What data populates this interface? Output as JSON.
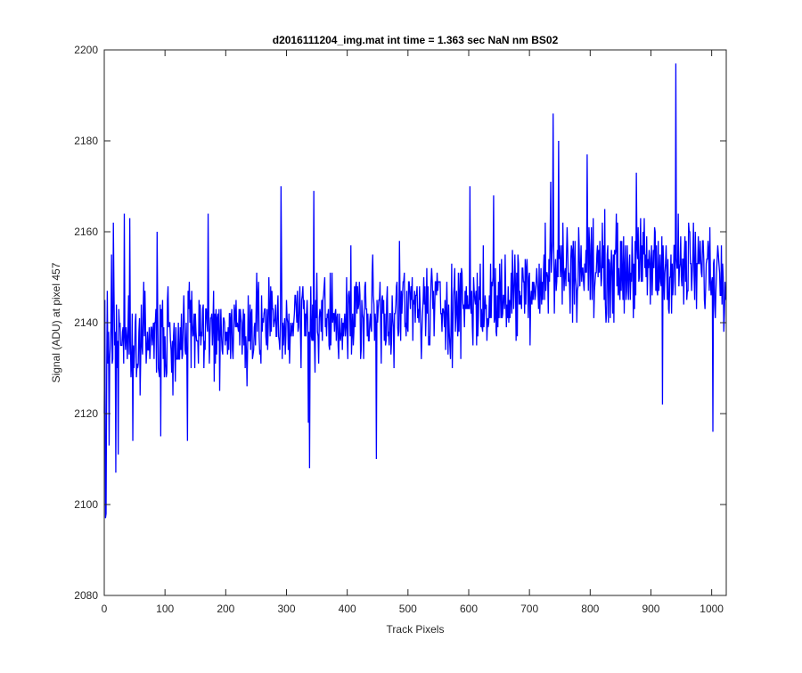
{
  "chart_data": {
    "type": "line",
    "title": "d2016111204_img.mat int time = 1.363 sec  NaN nm BS02",
    "xlabel": "Track Pixels",
    "ylabel": "Signal (ADU) at pixel 457",
    "xlim": [
      0,
      1024
    ],
    "ylim": [
      2080,
      2200
    ],
    "xticks": [
      0,
      100,
      200,
      300,
      400,
      500,
      600,
      700,
      800,
      900,
      1000
    ],
    "yticks": [
      2080,
      2100,
      2120,
      2140,
      2160,
      2180,
      2200
    ],
    "grid": false,
    "line_color": "#0000ff",
    "n_points": 1024,
    "trend": {
      "start": 2136,
      "end": 2150,
      "rise_after_x": 650,
      "late_level": 2152
    },
    "noise_half_range": 10,
    "features": [
      {
        "x": 0,
        "y": 2120
      },
      {
        "x": 1,
        "y": 2145
      },
      {
        "x": 2,
        "y": 2097
      },
      {
        "x": 3,
        "y": 2098
      },
      {
        "x": 4,
        "y": 2130
      },
      {
        "x": 5,
        "y": 2147
      },
      {
        "x": 8,
        "y": 2113
      },
      {
        "x": 12,
        "y": 2155
      },
      {
        "x": 15,
        "y": 2162
      },
      {
        "x": 19,
        "y": 2107
      },
      {
        "x": 23,
        "y": 2111
      },
      {
        "x": 33,
        "y": 2164
      },
      {
        "x": 42,
        "y": 2163
      },
      {
        "x": 47,
        "y": 2114
      },
      {
        "x": 67,
        "y": 2147
      },
      {
        "x": 87,
        "y": 2160
      },
      {
        "x": 93,
        "y": 2115
      },
      {
        "x": 137,
        "y": 2114
      },
      {
        "x": 171,
        "y": 2164
      },
      {
        "x": 291,
        "y": 2170
      },
      {
        "x": 336,
        "y": 2118
      },
      {
        "x": 338,
        "y": 2108
      },
      {
        "x": 345,
        "y": 2169
      },
      {
        "x": 448,
        "y": 2110
      },
      {
        "x": 602,
        "y": 2170
      },
      {
        "x": 641,
        "y": 2168
      },
      {
        "x": 735,
        "y": 2171
      },
      {
        "x": 739,
        "y": 2186
      },
      {
        "x": 748,
        "y": 2180
      },
      {
        "x": 795,
        "y": 2177
      },
      {
        "x": 876,
        "y": 2173
      },
      {
        "x": 919,
        "y": 2122
      },
      {
        "x": 941,
        "y": 2197
      },
      {
        "x": 1002,
        "y": 2116
      }
    ]
  }
}
